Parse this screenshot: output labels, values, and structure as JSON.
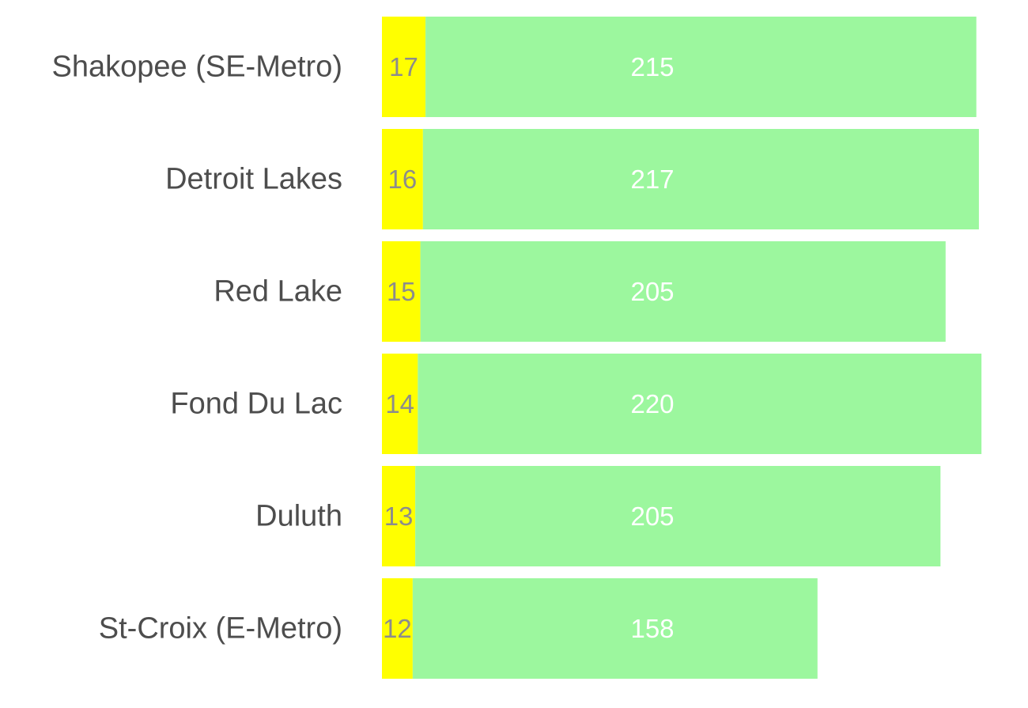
{
  "chart_data": {
    "type": "bar",
    "orientation": "horizontal",
    "stacked": true,
    "title": "",
    "xlabel": "",
    "ylabel": "",
    "grid": false,
    "legend": "none",
    "categories": [
      "Shakopee (SE-Metro)",
      "Detroit Lakes",
      "Red Lake",
      "Fond Du Lac",
      "Duluth",
      "St-Croix (E-Metro)"
    ],
    "series": [
      {
        "name": "segment-1",
        "color": "#ffff00",
        "label_color": "#8c8c8c",
        "values": [
          17,
          16,
          15,
          14,
          13,
          12
        ]
      },
      {
        "name": "segment-2",
        "color": "#9cf79e",
        "label_color": "#ffffff",
        "values": [
          215,
          217,
          205,
          220,
          205,
          158
        ]
      }
    ],
    "category_label_color": "#4d4d4d"
  }
}
